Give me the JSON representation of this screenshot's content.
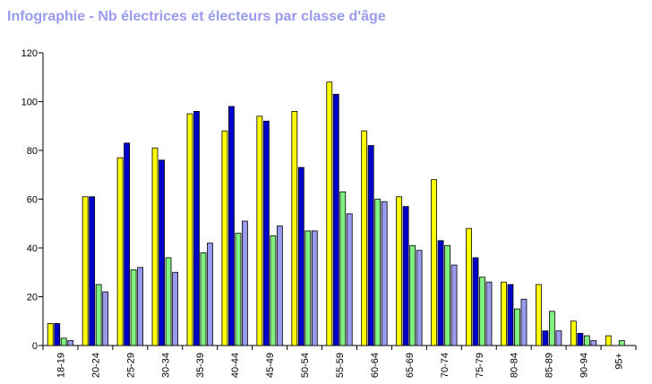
{
  "chart_data": {
    "type": "bar",
    "title": "Infographie - Nb électrices et électeurs par classe d'âge",
    "xlabel": "",
    "ylabel": "",
    "ylim": [
      0,
      120
    ],
    "yticks": [
      0,
      20,
      40,
      60,
      80,
      100,
      120
    ],
    "grid": false,
    "legend": "none",
    "categories": [
      "18-19",
      "20-24",
      "25-29",
      "30-34",
      "35-39",
      "40-44",
      "45-49",
      "50-54",
      "55-59",
      "60-64",
      "65-69",
      "70-74",
      "75-79",
      "80-84",
      "85-89",
      "90-94",
      "95+"
    ],
    "series": [
      {
        "color": "#ffff00",
        "values": [
          9,
          61,
          77,
          81,
          95,
          88,
          94,
          96,
          108,
          88,
          61,
          68,
          48,
          26,
          25,
          10,
          4
        ]
      },
      {
        "color": "#0000cc",
        "values": [
          9,
          61,
          83,
          76,
          96,
          98,
          92,
          73,
          103,
          82,
          57,
          43,
          36,
          25,
          6,
          5,
          0
        ]
      },
      {
        "color": "#80f080",
        "values": [
          3,
          25,
          31,
          36,
          38,
          46,
          45,
          47,
          63,
          60,
          41,
          41,
          28,
          15,
          14,
          4,
          2
        ]
      },
      {
        "color": "#9999ee",
        "values": [
          2,
          22,
          32,
          30,
          42,
          51,
          49,
          47,
          54,
          59,
          39,
          33,
          26,
          19,
          6,
          2,
          0
        ]
      }
    ]
  }
}
